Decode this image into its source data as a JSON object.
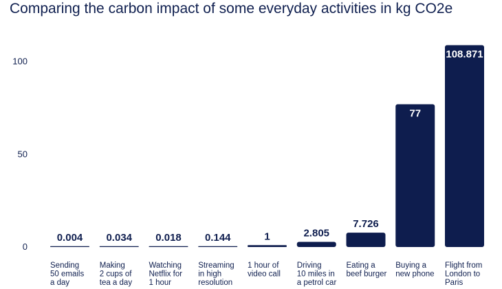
{
  "chart_data": {
    "type": "bar",
    "title": "Comparing the carbon impact of some everyday activities in kg CO2e",
    "xlabel": "",
    "ylabel": "",
    "ylim": [
      0,
      110
    ],
    "yticks": [
      0,
      50,
      100
    ],
    "grid": false,
    "categories": [
      "Sending 50 emails a day",
      "Making 2 cups of tea a day",
      "Watching Netflix for 1 hour",
      "Streaming in high resolution",
      "1 hour of video call",
      "Driving 10 miles in a petrol car",
      "Eating a beef burger",
      "Buying a new phone",
      "Flight from London to Paris"
    ],
    "category_lines": [
      [
        "Sending",
        "50 emails",
        "a day"
      ],
      [
        "Making",
        "2 cups of",
        "tea a day"
      ],
      [
        "Watching",
        "Netflix for",
        "1 hour"
      ],
      [
        "Streaming",
        "in high",
        "resolution"
      ],
      [
        "1 hour of",
        "video call"
      ],
      [
        "Driving",
        "10 miles in",
        "a petrol car"
      ],
      [
        "Eating a",
        "beef burger"
      ],
      [
        "Buying a",
        "new phone"
      ],
      [
        "Flight from",
        "London to",
        "Paris"
      ]
    ],
    "values": [
      0.004,
      0.034,
      0.018,
      0.144,
      1,
      2.805,
      7.726,
      77,
      108.871
    ],
    "value_labels": [
      "0.004",
      "0.034",
      "0.018",
      "0.144",
      "1",
      "2.805",
      "7.726",
      "77",
      "108.871"
    ],
    "bar_color": "#0e1d4e"
  }
}
